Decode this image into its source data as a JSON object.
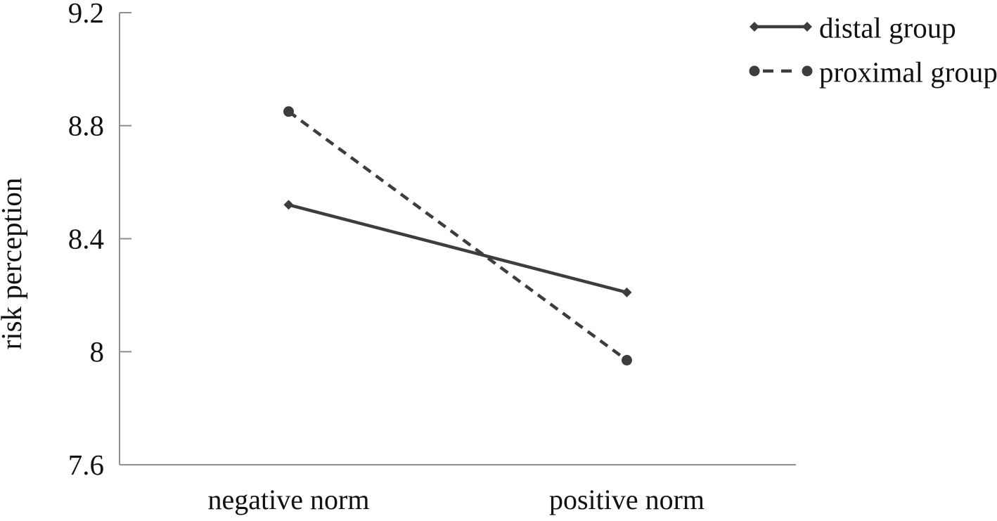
{
  "chart_data": {
    "type": "line",
    "title": "",
    "xlabel": "",
    "ylabel": "risk perception",
    "categories": [
      "negative norm",
      "positive norm"
    ],
    "series": [
      {
        "name": "distal group",
        "values": [
          8.52,
          8.21
        ],
        "line_style": "solid",
        "marker": "diamond"
      },
      {
        "name": "proximal group",
        "values": [
          8.85,
          7.97
        ],
        "line_style": "dashed",
        "marker": "circle"
      }
    ],
    "ylim": [
      7.6,
      9.2
    ],
    "ytick_values": [
      7.6,
      8.0,
      8.4,
      8.8,
      9.2
    ],
    "ytick_labels": [
      "7.6",
      "8",
      "8.4",
      "8.8",
      "9.2"
    ],
    "grid": false,
    "legend_position": "top-right",
    "colors": {
      "series": "#3d3d3d",
      "axis": "#8f8f8f",
      "text": "#111111",
      "background": "#ffffff"
    }
  }
}
